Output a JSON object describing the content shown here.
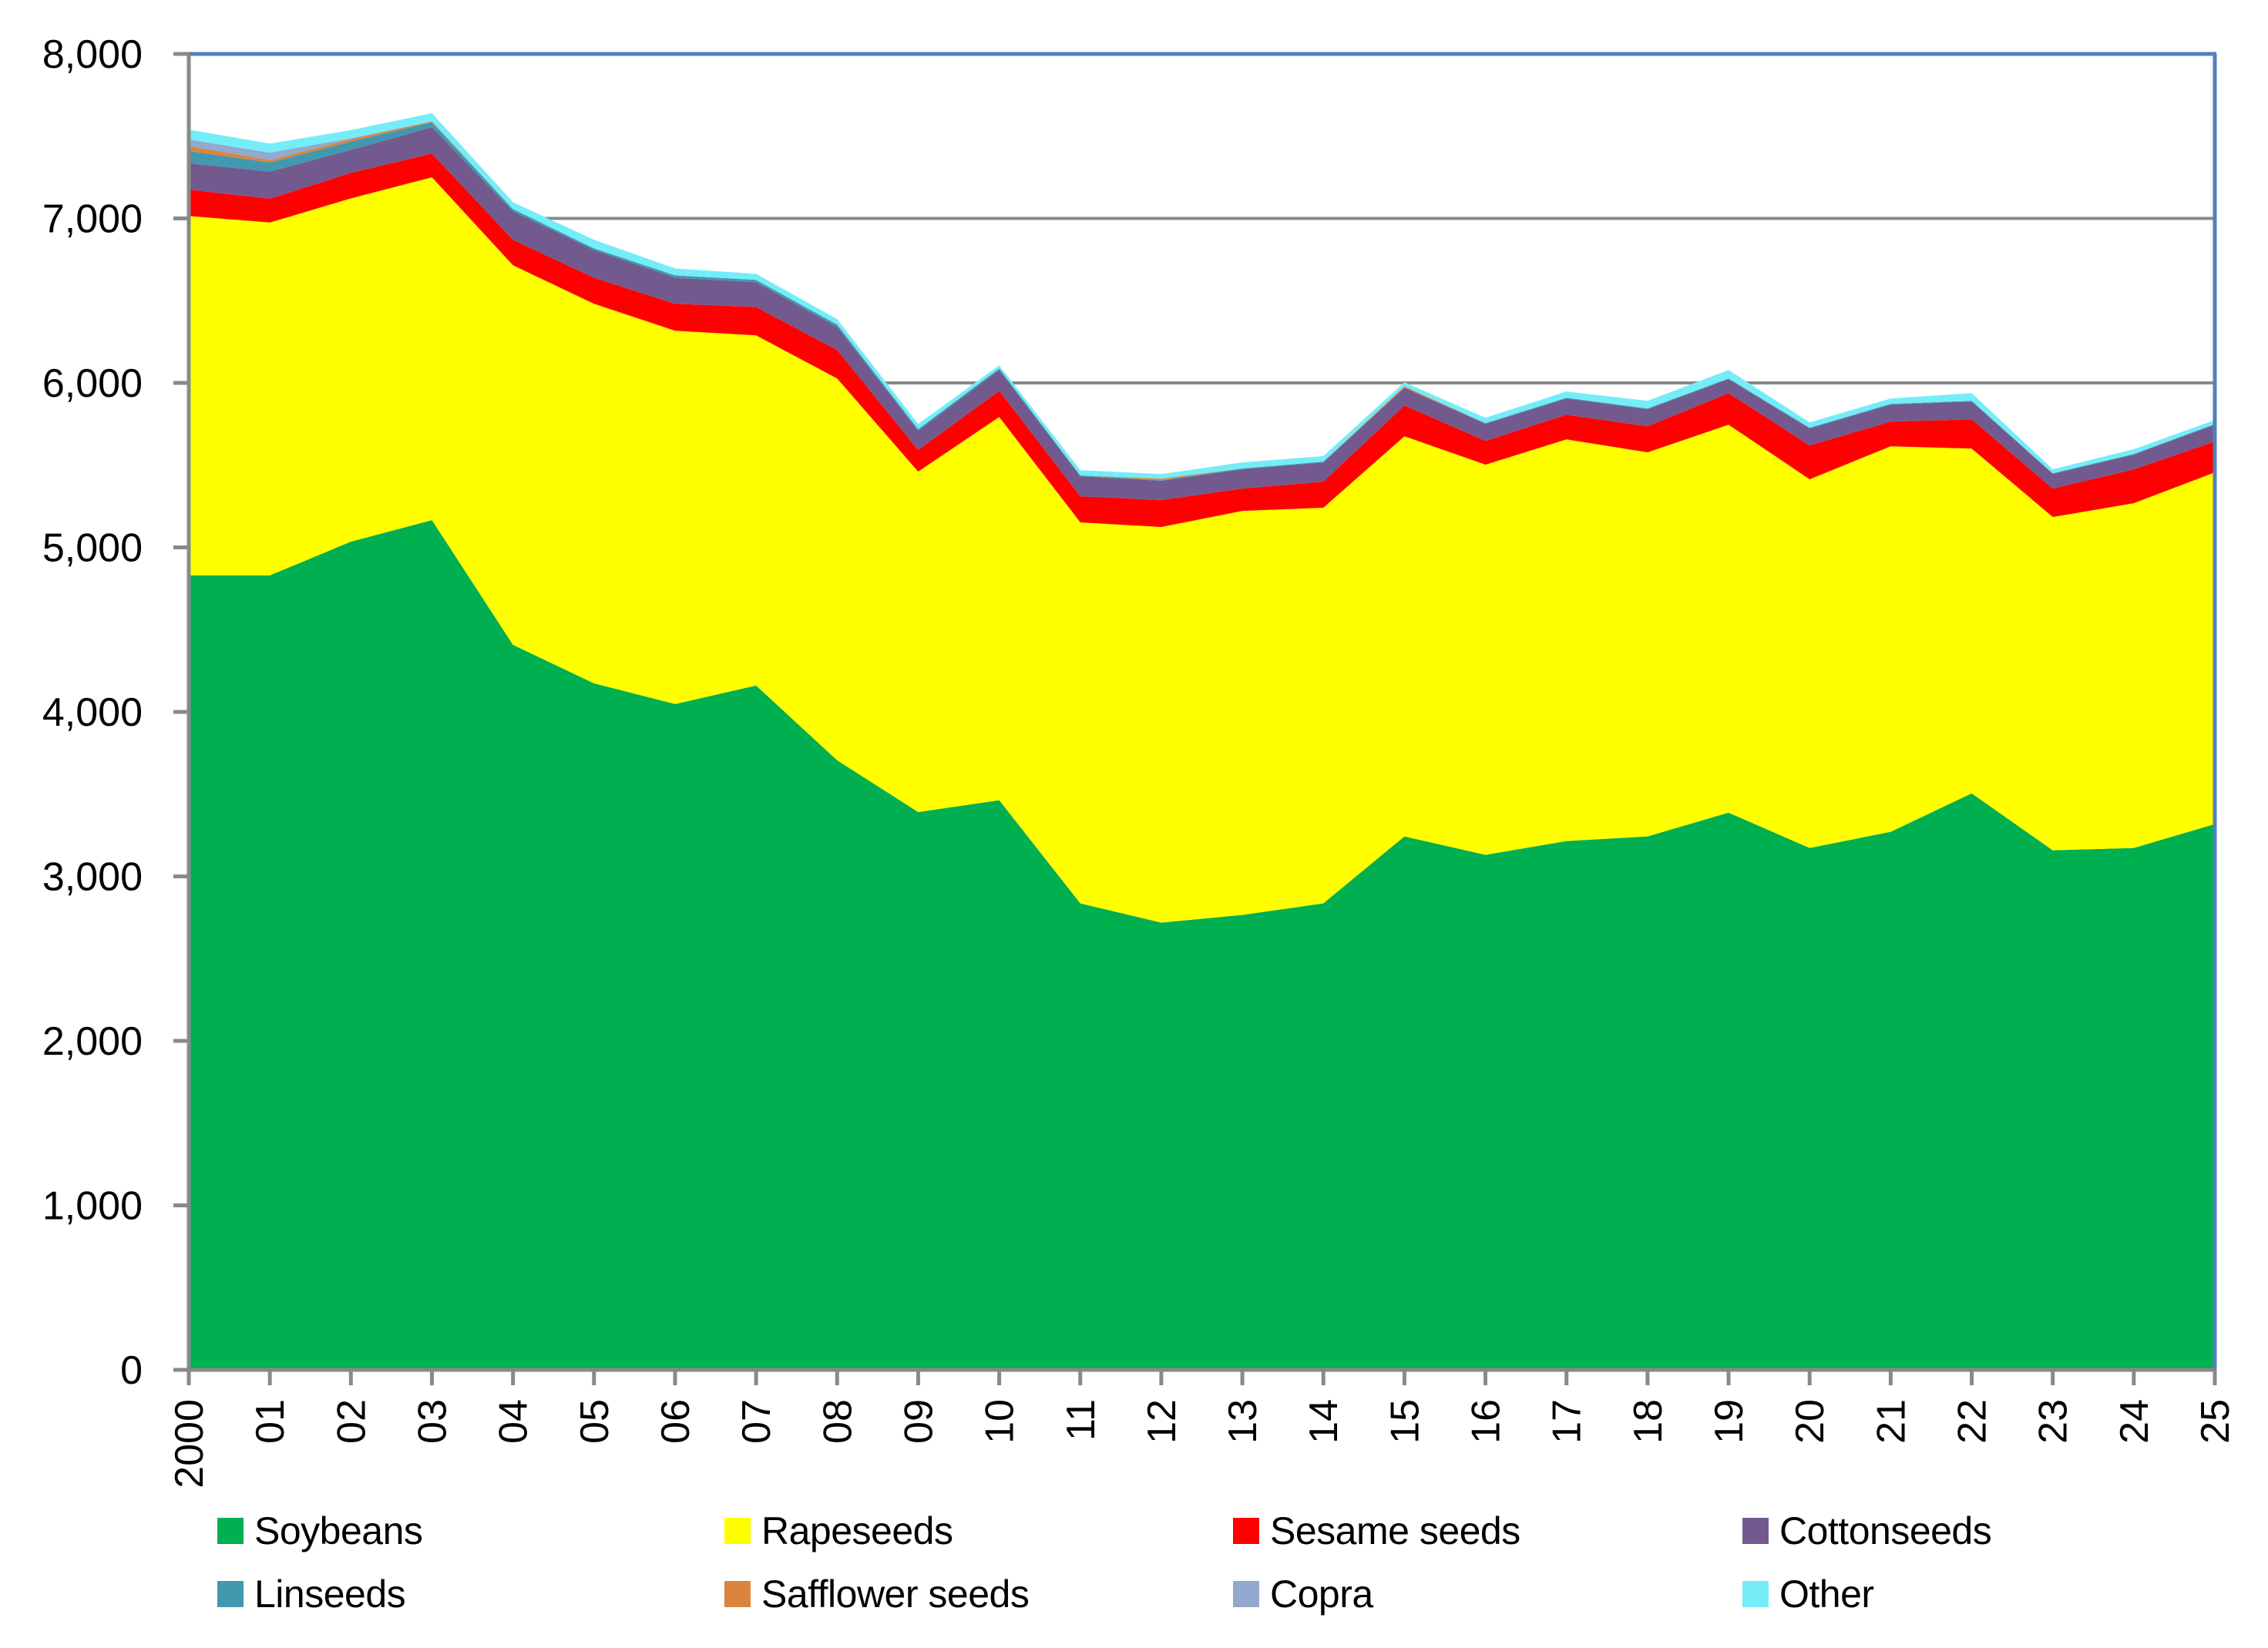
{
  "chart_data": {
    "type": "area",
    "stacked": true,
    "title": "",
    "xlabel": "",
    "ylabel": "",
    "ylim": [
      0,
      8000
    ],
    "yticks": [
      0,
      1000,
      2000,
      3000,
      4000,
      5000,
      6000,
      7000,
      8000
    ],
    "ytick_labels": [
      "0",
      "1,000",
      "2,000",
      "3,000",
      "4,000",
      "5,000",
      "6,000",
      "7,000",
      "8,000"
    ],
    "categories": [
      "2000",
      "01",
      "02",
      "03",
      "04",
      "05",
      "06",
      "07",
      "08",
      "09",
      "10",
      "11",
      "12",
      "13",
      "14",
      "15",
      "16",
      "17",
      "18",
      "19",
      "20",
      "21",
      "22",
      "23",
      "24",
      "25"
    ],
    "grid": "horizontal",
    "legend_position": "bottom",
    "series": [
      {
        "name": "Soybeans",
        "color": "#00AF50",
        "values": [
          4830,
          4830,
          5035,
          5166,
          4408,
          4174,
          4048,
          4160,
          3706,
          3391,
          3463,
          2836,
          2719,
          2766,
          2836,
          3243,
          3131,
          3215,
          3243,
          3388,
          3173,
          3271,
          3505,
          3159,
          3173,
          3318
        ]
      },
      {
        "name": "Rapeseeds",
        "color": "#FFFF00",
        "values": [
          2185,
          2145,
          2087,
          2084,
          2307,
          2307,
          2269,
          2129,
          2321,
          2070,
          2330,
          2316,
          2405,
          2456,
          2405,
          2433,
          2372,
          2442,
          2335,
          2358,
          2241,
          2344,
          2096,
          2026,
          2096,
          2138
        ]
      },
      {
        "name": "Sesame seeds",
        "color": "#FF0000",
        "values": [
          160,
          145,
          155,
          145,
          155,
          159,
          164,
          173,
          173,
          131,
          159,
          159,
          164,
          136,
          159,
          187,
          145,
          150,
          159,
          192,
          206,
          150,
          178,
          173,
          206,
          188
        ]
      },
      {
        "name": "Cottonseeds",
        "color": "#725A8E",
        "values": [
          160,
          165,
          140,
          160,
          173,
          168,
          159,
          150,
          141,
          117,
          126,
          122,
          117,
          117,
          117,
          108,
          103,
          98,
          103,
          84,
          103,
          103,
          108,
          89,
          89,
          102
        ]
      },
      {
        "name": "Linseeds",
        "color": "#4198AF",
        "values": [
          75,
          55,
          50,
          30,
          14,
          10,
          14,
          14,
          14,
          10,
          10,
          5,
          4,
          5,
          5,
          0,
          5,
          5,
          5,
          5,
          5,
          5,
          4,
          4,
          4,
          4
        ]
      },
      {
        "name": "Safflower seeds",
        "color": "#DB843D",
        "values": [
          30,
          15,
          15,
          5,
          0,
          0,
          0,
          0,
          0,
          0,
          0,
          0,
          9,
          0,
          0,
          9,
          0,
          0,
          0,
          0,
          0,
          0,
          0,
          0,
          0,
          0
        ]
      },
      {
        "name": "Copra",
        "color": "#93A9CF",
        "values": [
          40,
          45,
          5,
          0,
          0,
          0,
          0,
          0,
          0,
          0,
          0,
          0,
          0,
          0,
          0,
          0,
          0,
          0,
          0,
          0,
          0,
          0,
          0,
          0,
          0,
          0
        ]
      },
      {
        "name": "Other",
        "color": "#74EDF9",
        "values": [
          60,
          55,
          50,
          50,
          42,
          52,
          42,
          37,
          33,
          32,
          19,
          32,
          28,
          37,
          33,
          24,
          32,
          38,
          46,
          51,
          32,
          32,
          47,
          24,
          29,
          24
        ]
      }
    ]
  },
  "style": {
    "grid_color": "#898989",
    "axis_color": "#898989",
    "border_color": "#4F81BD"
  }
}
